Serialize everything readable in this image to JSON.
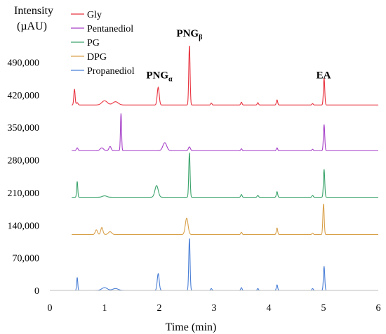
{
  "chart_data": {
    "type": "line",
    "ylabel_line1": "Intensity",
    "ylabel_line2": "(µAU)",
    "xlabel": "Time (min)",
    "xlim": [
      0,
      6
    ],
    "ylim": [
      0,
      560000
    ],
    "x_ticks": [
      0,
      1,
      2,
      3,
      4,
      5,
      6
    ],
    "y_ticks": [
      0,
      70000,
      140000,
      210000,
      280000,
      350000,
      420000,
      490000
    ],
    "y_tick_labels": [
      "0",
      "70,000",
      "140,000",
      "210,000",
      "280,000",
      "350,000",
      "420,000",
      "490,000"
    ],
    "legend_position": "top-left",
    "annotations": [
      {
        "base": "PNG",
        "sub": "α",
        "x": 2.0,
        "y": 455000
      },
      {
        "base": "PNG",
        "sub": "β",
        "x": 2.55,
        "y": 545000
      },
      {
        "base": "EA",
        "sub": "",
        "x": 5.0,
        "y": 455000
      }
    ],
    "series": [
      {
        "name": "Gly",
        "color": "#e8333f",
        "baseline": 398000,
        "peaks": [
          [
            0.45,
            34000,
            0.012
          ],
          [
            0.5,
            5000,
            0.015
          ],
          [
            1.0,
            9000,
            0.05
          ],
          [
            1.2,
            7000,
            0.05
          ],
          [
            1.98,
            38000,
            0.018
          ],
          [
            2.55,
            128000,
            0.012
          ],
          [
            2.95,
            4000,
            0.012
          ],
          [
            3.5,
            6000,
            0.012
          ],
          [
            3.8,
            5000,
            0.012
          ],
          [
            4.15,
            11000,
            0.012
          ],
          [
            4.8,
            3000,
            0.012
          ],
          [
            5.01,
            58000,
            0.012
          ]
        ]
      },
      {
        "name": "Pentanediol",
        "color": "#a640c8",
        "baseline": 300000,
        "peaks": [
          [
            0.5,
            6000,
            0.015
          ],
          [
            0.95,
            6000,
            0.03
          ],
          [
            1.1,
            9000,
            0.02
          ],
          [
            1.3,
            80000,
            0.01
          ],
          [
            2.1,
            17000,
            0.035
          ],
          [
            2.55,
            8000,
            0.018
          ],
          [
            3.5,
            4000,
            0.012
          ],
          [
            4.15,
            6000,
            0.012
          ],
          [
            4.8,
            3000,
            0.012
          ],
          [
            5.01,
            56000,
            0.012
          ]
        ]
      },
      {
        "name": "PG",
        "color": "#3aa36b",
        "baseline": 200000,
        "peaks": [
          [
            0.5,
            34000,
            0.01
          ],
          [
            1.0,
            3000,
            0.04
          ],
          [
            1.95,
            25000,
            0.03
          ],
          [
            2.55,
            96000,
            0.012
          ],
          [
            3.5,
            6000,
            0.012
          ],
          [
            3.8,
            4000,
            0.012
          ],
          [
            4.15,
            12000,
            0.012
          ],
          [
            4.8,
            4000,
            0.012
          ],
          [
            5.01,
            60000,
            0.012
          ]
        ]
      },
      {
        "name": "DPG",
        "color": "#d9a04a",
        "baseline": 120000,
        "peaks": [
          [
            0.85,
            10000,
            0.02
          ],
          [
            0.95,
            15000,
            0.02
          ],
          [
            1.1,
            6000,
            0.03
          ],
          [
            2.5,
            35000,
            0.025
          ],
          [
            3.5,
            5000,
            0.012
          ],
          [
            4.15,
            14000,
            0.012
          ],
          [
            4.8,
            3000,
            0.012
          ],
          [
            5.0,
            66000,
            0.012
          ]
        ]
      },
      {
        "name": "Propanediol",
        "color": "#4a7fd6",
        "baseline": 0,
        "peaks": [
          [
            0.5,
            28000,
            0.01
          ],
          [
            1.0,
            6000,
            0.05
          ],
          [
            1.2,
            4000,
            0.05
          ],
          [
            1.98,
            36000,
            0.018
          ],
          [
            2.55,
            112000,
            0.012
          ],
          [
            2.95,
            4000,
            0.012
          ],
          [
            3.5,
            6000,
            0.012
          ],
          [
            3.8,
            4000,
            0.012
          ],
          [
            4.15,
            12000,
            0.012
          ],
          [
            4.8,
            4000,
            0.012
          ],
          [
            5.01,
            52000,
            0.012
          ]
        ]
      }
    ]
  }
}
